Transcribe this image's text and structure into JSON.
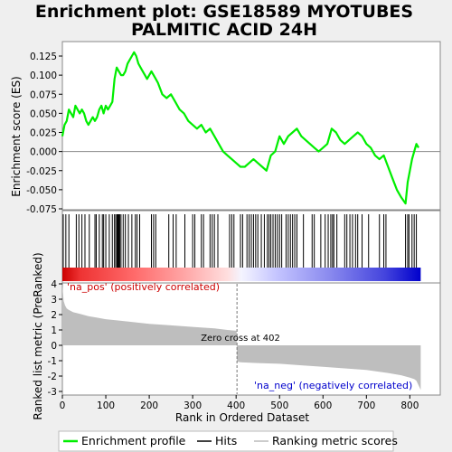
{
  "chart_data": {
    "type": "line",
    "title": "Enrichment plot: GSE18589 MYOTUBES",
    "subtitle": "PALMITIC ACID 24H",
    "es_panel": {
      "ylabel": "Enrichment score (ES)",
      "ylim": [
        -0.075,
        0.135
      ],
      "yticks": [
        "0.125",
        "0.100",
        "0.075",
        "0.050",
        "0.025",
        "0.000",
        "-0.025",
        "-0.050",
        "-0.075"
      ],
      "ytick_values": [
        0.125,
        0.1,
        0.075,
        0.05,
        0.025,
        0.0,
        -0.025,
        -0.05,
        -0.075
      ],
      "series_name": "Enrichment profile",
      "color": "#00ee00",
      "x": [
        0,
        5,
        10,
        15,
        20,
        25,
        30,
        35,
        40,
        45,
        50,
        55,
        60,
        65,
        70,
        75,
        80,
        85,
        90,
        95,
        100,
        105,
        110,
        115,
        120,
        125,
        130,
        135,
        140,
        145,
        150,
        155,
        160,
        165,
        170,
        175,
        180,
        185,
        190,
        195,
        200,
        205,
        210,
        215,
        220,
        230,
        240,
        250,
        260,
        270,
        280,
        290,
        300,
        310,
        320,
        330,
        340,
        350,
        360,
        370,
        380,
        390,
        400,
        410,
        420,
        430,
        440,
        450,
        460,
        470,
        480,
        490,
        500,
        510,
        520,
        530,
        540,
        550,
        560,
        570,
        580,
        590,
        600,
        610,
        620,
        630,
        640,
        650,
        660,
        670,
        680,
        690,
        700,
        710,
        720,
        730,
        740,
        750,
        760,
        770,
        780,
        790,
        795,
        800,
        805,
        810,
        815,
        820
      ],
      "y": [
        0.02,
        0.035,
        0.04,
        0.055,
        0.05,
        0.045,
        0.06,
        0.055,
        0.05,
        0.055,
        0.05,
        0.04,
        0.035,
        0.04,
        0.045,
        0.04,
        0.045,
        0.055,
        0.06,
        0.05,
        0.06,
        0.055,
        0.06,
        0.065,
        0.095,
        0.11,
        0.105,
        0.1,
        0.1,
        0.105,
        0.115,
        0.12,
        0.125,
        0.13,
        0.125,
        0.115,
        0.11,
        0.105,
        0.1,
        0.095,
        0.1,
        0.105,
        0.1,
        0.095,
        0.09,
        0.075,
        0.07,
        0.075,
        0.065,
        0.055,
        0.05,
        0.04,
        0.035,
        0.03,
        0.035,
        0.025,
        0.03,
        0.02,
        0.01,
        0.0,
        -0.005,
        -0.01,
        -0.015,
        -0.02,
        -0.02,
        -0.015,
        -0.01,
        -0.015,
        -0.02,
        -0.025,
        -0.005,
        0.0,
        0.02,
        0.01,
        0.02,
        0.025,
        0.03,
        0.02,
        0.015,
        0.01,
        0.005,
        0.0,
        0.005,
        0.01,
        0.03,
        0.025,
        0.015,
        0.01,
        0.015,
        0.02,
        0.025,
        0.02,
        0.01,
        0.005,
        -0.005,
        -0.01,
        -0.005,
        -0.02,
        -0.035,
        -0.05,
        -0.06,
        -0.068,
        -0.04,
        -0.025,
        -0.01,
        0.0,
        0.01,
        0.005
      ]
    },
    "hits_panel": {
      "series_name": "Hits",
      "positions": [
        2,
        8,
        15,
        32,
        38,
        45,
        52,
        62,
        75,
        78,
        85,
        92,
        95,
        100,
        108,
        115,
        120,
        123,
        126,
        128,
        130,
        132,
        135,
        140,
        145,
        152,
        160,
        168,
        172,
        178,
        205,
        210,
        215,
        245,
        255,
        262,
        282,
        300,
        305,
        320,
        325,
        340,
        345,
        350,
        358,
        385,
        390,
        395,
        410,
        415,
        425,
        430,
        435,
        440,
        445,
        450,
        458,
        465,
        472,
        476,
        480,
        485,
        490,
        495,
        500,
        505,
        515,
        520,
        525,
        530,
        535,
        540,
        555,
        575,
        580,
        595,
        605,
        612,
        618,
        622,
        625,
        632,
        650,
        655,
        662,
        668,
        675,
        680,
        690,
        705,
        730,
        740,
        745,
        790,
        795,
        798,
        805,
        810,
        815
      ]
    },
    "ranking_panel": {
      "ylabel": "Ranked list metric (PreRanked)",
      "xlabel": "Rank in Ordered Dataset",
      "series_name": "Ranking metric scores",
      "ylim": [
        -3,
        4
      ],
      "yticks": [
        "4",
        "3",
        "2",
        "1",
        "0",
        "-1",
        "-2",
        "-3"
      ],
      "ytick_values": [
        4,
        3,
        2,
        1,
        0,
        -1,
        -2,
        -3
      ],
      "xlim": [
        0,
        870
      ],
      "xticks": [
        "0",
        "100",
        "200",
        "300",
        "400",
        "500",
        "600",
        "700",
        "800"
      ],
      "xtick_values": [
        0,
        100,
        200,
        300,
        400,
        500,
        600,
        700,
        800
      ],
      "n_genes": 825,
      "zero_cross": 402,
      "zero_cross_label": "Zero cross at 402",
      "pos_label": "'na_pos' (positively correlated)",
      "neg_label": "'na_neg' (negatively correlated)",
      "pos_color": "#cc0000",
      "neg_color": "#0000cc",
      "profile_x": [
        0,
        3,
        6,
        10,
        15,
        25,
        40,
        60,
        80,
        100,
        150,
        200,
        250,
        300,
        350,
        380,
        401,
        402,
        410,
        450,
        500,
        550,
        600,
        650,
        700,
        750,
        780,
        800,
        810,
        815,
        820,
        825
      ],
      "profile_y": [
        3.9,
        2.9,
        2.6,
        2.4,
        2.3,
        2.15,
        2.05,
        1.9,
        1.8,
        1.7,
        1.55,
        1.4,
        1.3,
        1.2,
        1.1,
        1.0,
        0.95,
        -1.05,
        -1.1,
        -1.15,
        -1.2,
        -1.3,
        -1.4,
        -1.5,
        -1.6,
        -1.8,
        -1.95,
        -2.1,
        -2.2,
        -2.3,
        -2.6,
        -2.9
      ]
    },
    "legend": [
      "Enrichment profile",
      "Hits",
      "Ranking metric scores"
    ]
  }
}
